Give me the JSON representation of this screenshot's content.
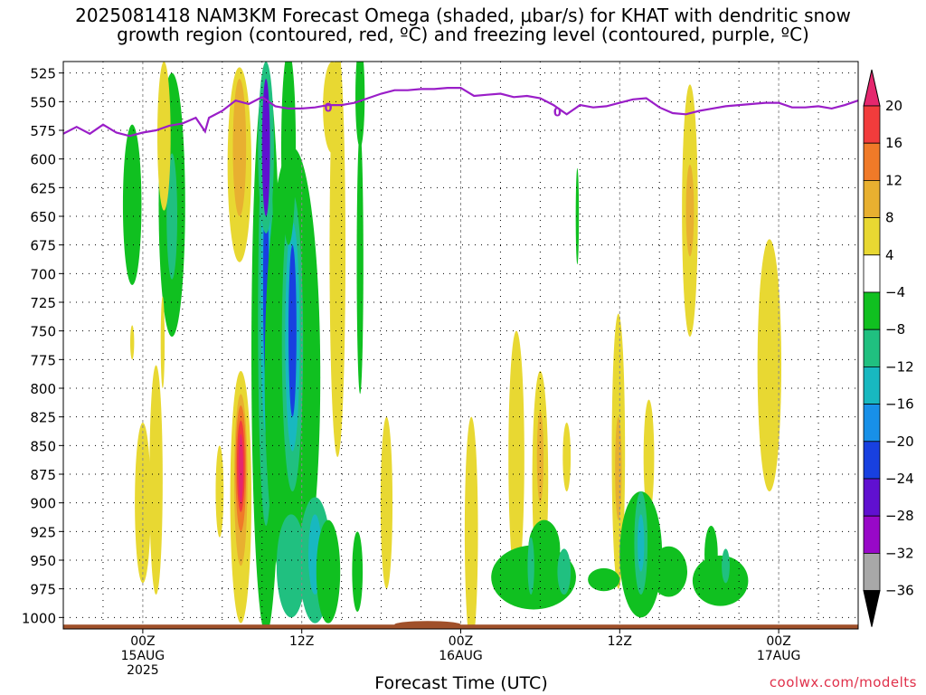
{
  "title": {
    "line1": "2025081418 NAM3KM Forecast Omega (shaded, μbar/s) for KHAT with dendritic snow",
    "line2": "growth region (contoured, red, ºC) and freezing level (contoured, purple, ºC)"
  },
  "x_axis": {
    "title": "Forecast Time (UTC)",
    "ticks": [
      {
        "hour": 6,
        "line1": "00Z",
        "line2": "15AUG",
        "line3": "2025"
      },
      {
        "hour": 18,
        "line1": "12Z",
        "line2": "",
        "line3": ""
      },
      {
        "hour": 30,
        "line1": "00Z",
        "line2": "16AUG",
        "line3": ""
      },
      {
        "hour": 42,
        "line1": "12Z",
        "line2": "",
        "line3": ""
      },
      {
        "hour": 54,
        "line1": "00Z",
        "line2": "17AUG",
        "line3": ""
      }
    ]
  },
  "credit": "coolwx.com/modelts",
  "chart_data": {
    "type": "heatmap",
    "x_unit": "forecast hour from 2025-08-14 18Z",
    "xlim": [
      0,
      60
    ],
    "y_unit": "pressure (mb)",
    "ylim": [
      1010,
      515
    ],
    "y_ticks": [
      525,
      550,
      575,
      600,
      625,
      650,
      675,
      700,
      725,
      750,
      775,
      800,
      825,
      850,
      875,
      900,
      925,
      950,
      975,
      1000
    ],
    "grid": true,
    "colorbar": {
      "labels": [
        "20",
        "16",
        "12",
        "8",
        "4",
        "−4",
        "−8",
        "−12",
        "−16",
        "−20",
        "−24",
        "−28",
        "−32",
        "−36"
      ],
      "colors": [
        "#e5276e",
        "#f23c3c",
        "#f07a28",
        "#e8b030",
        "#e8d832",
        "#ffffff",
        "#10c020",
        "#20c080",
        "#18b8c0",
        "#1890e8",
        "#1840e0",
        "#6010d0",
        "#9808c8",
        "#a8a8a8"
      ]
    },
    "freezing_level": {
      "label": "0",
      "color": "#9a1ec8",
      "points": [
        [
          0,
          578
        ],
        [
          1,
          572
        ],
        [
          2,
          578
        ],
        [
          3,
          570
        ],
        [
          4,
          577
        ],
        [
          5,
          580
        ],
        [
          6,
          577
        ],
        [
          7,
          575
        ],
        [
          8,
          571
        ],
        [
          9,
          569
        ],
        [
          10,
          564
        ],
        [
          10.7,
          576
        ],
        [
          11,
          564
        ],
        [
          12,
          558
        ],
        [
          13,
          549
        ],
        [
          14,
          552
        ],
        [
          15,
          546
        ],
        [
          16,
          554
        ],
        [
          17,
          556
        ],
        [
          18,
          556
        ],
        [
          19,
          555
        ],
        [
          20,
          553
        ],
        [
          21,
          553
        ],
        [
          22,
          551
        ],
        [
          23,
          547
        ],
        [
          24,
          543
        ],
        [
          25,
          540
        ],
        [
          26,
          540
        ],
        [
          27,
          539
        ],
        [
          28,
          539
        ],
        [
          29,
          538
        ],
        [
          30,
          538
        ],
        [
          31,
          545
        ],
        [
          32,
          544
        ],
        [
          33,
          543
        ],
        [
          34,
          546
        ],
        [
          35,
          545
        ],
        [
          36,
          547
        ],
        [
          37,
          553
        ],
        [
          38,
          561
        ],
        [
          39,
          553
        ],
        [
          40,
          555
        ],
        [
          41,
          554
        ],
        [
          42,
          551
        ],
        [
          43,
          548
        ],
        [
          44,
          547
        ],
        [
          45,
          555
        ],
        [
          46,
          560
        ],
        [
          47,
          561
        ],
        [
          48,
          558
        ],
        [
          49,
          556
        ],
        [
          50,
          554
        ],
        [
          51,
          553
        ],
        [
          52,
          552
        ],
        [
          53,
          551
        ],
        [
          54,
          551
        ],
        [
          55,
          555
        ],
        [
          56,
          555
        ],
        [
          57,
          554
        ],
        [
          58,
          556
        ],
        [
          59,
          553
        ],
        [
          60,
          549
        ]
      ],
      "label_positions": [
        [
          20,
          555
        ],
        [
          37.3,
          559
        ]
      ]
    },
    "surface": {
      "color": "#a0502a",
      "pressure": 1007
    },
    "omega_cells": [
      {
        "x": 5.2,
        "p": 640,
        "rx": 0.7,
        "ry": 70,
        "value": -8
      },
      {
        "x": 8.2,
        "p": 640,
        "rx": 1.0,
        "ry": 115,
        "value": -8
      },
      {
        "x": 8.2,
        "p": 650,
        "rx": 0.4,
        "ry": 55,
        "value": -12
      },
      {
        "x": 7.6,
        "p": 580,
        "rx": 0.5,
        "ry": 65,
        "value": 4
      },
      {
        "x": 5.2,
        "p": 760,
        "rx": 0.15,
        "ry": 15,
        "value": 4
      },
      {
        "x": 6.0,
        "p": 900,
        "rx": 0.6,
        "ry": 70,
        "value": 4
      },
      {
        "x": 7.0,
        "p": 880,
        "rx": 0.5,
        "ry": 100,
        "value": 4
      },
      {
        "x": 7.5,
        "p": 760,
        "rx": 0.15,
        "ry": 40,
        "value": 4
      },
      {
        "x": 11.8,
        "p": 890,
        "rx": 0.3,
        "ry": 40,
        "value": 4
      },
      {
        "x": 13.4,
        "p": 895,
        "rx": 0.8,
        "ry": 110,
        "value": 4
      },
      {
        "x": 13.4,
        "p": 880,
        "rx": 0.5,
        "ry": 75,
        "value": 8
      },
      {
        "x": 13.4,
        "p": 870,
        "rx": 0.4,
        "ry": 55,
        "value": 12
      },
      {
        "x": 13.4,
        "p": 868,
        "rx": 0.3,
        "ry": 40,
        "value": 16
      },
      {
        "x": 13.4,
        "p": 870,
        "rx": 0.18,
        "ry": 30,
        "value": 20
      },
      {
        "x": 13.3,
        "p": 605,
        "rx": 0.9,
        "ry": 85,
        "value": 4
      },
      {
        "x": 13.3,
        "p": 590,
        "rx": 0.5,
        "ry": 60,
        "value": 8
      },
      {
        "x": 15.3,
        "p": 770,
        "rx": 1.1,
        "ry": 245,
        "value": -8
      },
      {
        "x": 15.3,
        "p": 740,
        "rx": 0.6,
        "ry": 180,
        "value": -12
      },
      {
        "x": 15.3,
        "p": 720,
        "rx": 0.4,
        "ry": 120,
        "value": -16
      },
      {
        "x": 15.3,
        "p": 710,
        "rx": 0.22,
        "ry": 85,
        "value": -24
      },
      {
        "x": 15.3,
        "p": 590,
        "rx": 0.6,
        "ry": 75,
        "value": -12
      },
      {
        "x": 15.3,
        "p": 590,
        "rx": 0.3,
        "ry": 60,
        "value": -28
      },
      {
        "x": 17.3,
        "p": 790,
        "rx": 2.1,
        "ry": 200,
        "value": -8
      },
      {
        "x": 17.3,
        "p": 760,
        "rx": 0.8,
        "ry": 130,
        "value": -12
      },
      {
        "x": 17.3,
        "p": 755,
        "rx": 0.55,
        "ry": 100,
        "value": -16
      },
      {
        "x": 17.3,
        "p": 750,
        "rx": 0.3,
        "ry": 75,
        "value": -24
      },
      {
        "x": 17.0,
        "p": 590,
        "rx": 0.55,
        "ry": 85,
        "value": -8
      },
      {
        "x": 17.2,
        "p": 955,
        "rx": 1.1,
        "ry": 45,
        "value": -12
      },
      {
        "x": 19.0,
        "p": 950,
        "rx": 1.2,
        "ry": 55,
        "value": -12
      },
      {
        "x": 19.0,
        "p": 945,
        "rx": 0.5,
        "ry": 35,
        "value": -16
      },
      {
        "x": 20.0,
        "p": 960,
        "rx": 0.9,
        "ry": 45,
        "value": -8
      },
      {
        "x": 20.7,
        "p": 680,
        "rx": 0.6,
        "ry": 180,
        "value": 4
      },
      {
        "x": 20.3,
        "p": 555,
        "rx": 0.7,
        "ry": 40,
        "value": 4
      },
      {
        "x": 22.4,
        "p": 690,
        "rx": 0.25,
        "ry": 115,
        "value": -8
      },
      {
        "x": 22.4,
        "p": 545,
        "rx": 0.35,
        "ry": 45,
        "value": -8
      },
      {
        "x": 22.2,
        "p": 960,
        "rx": 0.4,
        "ry": 35,
        "value": -8
      },
      {
        "x": 24.4,
        "p": 900,
        "rx": 0.45,
        "ry": 75,
        "value": 4
      },
      {
        "x": 30.8,
        "p": 925,
        "rx": 0.5,
        "ry": 100,
        "value": 4
      },
      {
        "x": 34.2,
        "p": 860,
        "rx": 0.6,
        "ry": 110,
        "value": 4
      },
      {
        "x": 36.0,
        "p": 880,
        "rx": 0.6,
        "ry": 95,
        "value": 4
      },
      {
        "x": 36.0,
        "p": 860,
        "rx": 0.25,
        "ry": 40,
        "value": 8
      },
      {
        "x": 38.0,
        "p": 860,
        "rx": 0.3,
        "ry": 30,
        "value": 4
      },
      {
        "x": 41.9,
        "p": 855,
        "rx": 0.5,
        "ry": 120,
        "value": 4
      },
      {
        "x": 41.9,
        "p": 870,
        "rx": 0.25,
        "ry": 45,
        "value": 8
      },
      {
        "x": 44.2,
        "p": 860,
        "rx": 0.4,
        "ry": 50,
        "value": 4
      },
      {
        "x": 47.3,
        "p": 645,
        "rx": 0.6,
        "ry": 110,
        "value": 4
      },
      {
        "x": 47.3,
        "p": 645,
        "rx": 0.3,
        "ry": 40,
        "value": 8
      },
      {
        "x": 53.3,
        "p": 780,
        "rx": 0.9,
        "ry": 110,
        "value": 4
      },
      {
        "x": 38.8,
        "p": 650,
        "rx": 0.12,
        "ry": 42,
        "value": -8
      },
      {
        "x": 35.5,
        "p": 965,
        "rx": 3.2,
        "ry": 28,
        "value": -8
      },
      {
        "x": 36.3,
        "p": 940,
        "rx": 1.2,
        "ry": 25,
        "value": -8
      },
      {
        "x": 35.3,
        "p": 955,
        "rx": 0.25,
        "ry": 25,
        "value": -12
      },
      {
        "x": 37.8,
        "p": 960,
        "rx": 0.5,
        "ry": 20,
        "value": -12
      },
      {
        "x": 40.8,
        "p": 967,
        "rx": 1.2,
        "ry": 10,
        "value": -8
      },
      {
        "x": 43.6,
        "p": 945,
        "rx": 1.6,
        "ry": 55,
        "value": -8
      },
      {
        "x": 43.6,
        "p": 935,
        "rx": 0.5,
        "ry": 45,
        "value": -12
      },
      {
        "x": 43.6,
        "p": 935,
        "rx": 0.25,
        "ry": 25,
        "value": -16
      },
      {
        "x": 45.7,
        "p": 960,
        "rx": 1.4,
        "ry": 22,
        "value": -8
      },
      {
        "x": 49.6,
        "p": 968,
        "rx": 2.1,
        "ry": 22,
        "value": -8
      },
      {
        "x": 48.9,
        "p": 945,
        "rx": 0.5,
        "ry": 25,
        "value": -8
      },
      {
        "x": 50.0,
        "p": 955,
        "rx": 0.3,
        "ry": 15,
        "value": -12
      }
    ]
  }
}
